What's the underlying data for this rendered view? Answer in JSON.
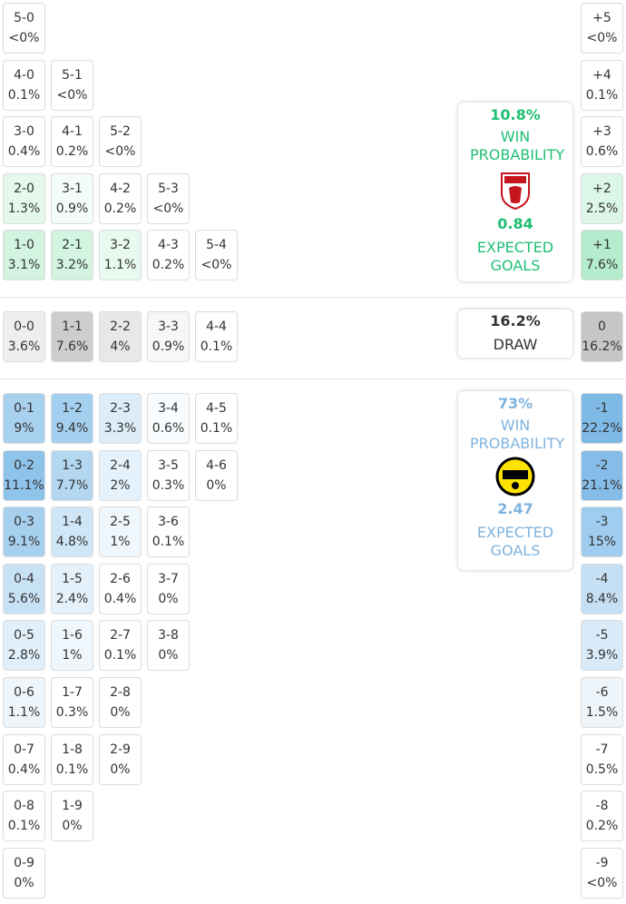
{
  "sections": [
    {
      "summary": {
        "probability": "10.8%",
        "label": "WIN PROBABILITY",
        "xg": "0.84",
        "xg_label": "EXPECTED GOALS",
        "color": "#1fbf74"
      },
      "rows": [
        [
          {
            "score": "5-0",
            "prob": "<0%",
            "color": "#ffffff"
          }
        ],
        [
          {
            "score": "4-0",
            "prob": "0.1%",
            "color": "#ffffff"
          },
          {
            "score": "5-1",
            "prob": "<0%",
            "color": "#ffffff"
          }
        ],
        [
          {
            "score": "3-0",
            "prob": "0.4%",
            "color": "#ffffff"
          },
          {
            "score": "4-1",
            "prob": "0.2%",
            "color": "#ffffff"
          },
          {
            "score": "5-2",
            "prob": "<0%",
            "color": "#ffffff"
          }
        ],
        [
          {
            "score": "2-0",
            "prob": "1.3%",
            "color": "#e4f8ec"
          },
          {
            "score": "3-1",
            "prob": "0.9%",
            "color": "#f4fcf7"
          },
          {
            "score": "4-2",
            "prob": "0.2%",
            "color": "#ffffff"
          },
          {
            "score": "5-3",
            "prob": "<0%",
            "color": "#ffffff"
          }
        ],
        [
          {
            "score": "1-0",
            "prob": "3.1%",
            "color": "#d2f4e1"
          },
          {
            "score": "2-1",
            "prob": "3.2%",
            "color": "#d2f4e1"
          },
          {
            "score": "3-2",
            "prob": "1.1%",
            "color": "#e8f9ef"
          },
          {
            "score": "4-3",
            "prob": "0.2%",
            "color": "#ffffff"
          },
          {
            "score": "5-4",
            "prob": "<0%",
            "color": "#ffffff"
          }
        ]
      ],
      "margins": [
        {
          "score": "+5",
          "prob": "<0%",
          "color": "#ffffff"
        },
        {
          "score": "+4",
          "prob": "0.1%",
          "color": "#ffffff"
        },
        {
          "score": "+3",
          "prob": "0.6%",
          "color": "#ffffff"
        },
        {
          "score": "+2",
          "prob": "2.5%",
          "color": "#dcf6e7"
        },
        {
          "score": "+1",
          "prob": "7.6%",
          "color": "#b6ecce"
        }
      ]
    },
    {
      "summary": {
        "probability": "16.2%",
        "label": "DRAW",
        "color": "#333333"
      },
      "rows": [
        [
          {
            "score": "0-0",
            "prob": "3.6%",
            "color": "#eeeeee"
          },
          {
            "score": "1-1",
            "prob": "7.6%",
            "color": "#cdcdcd"
          },
          {
            "score": "2-2",
            "prob": "4%",
            "color": "#e8e8e8"
          },
          {
            "score": "3-3",
            "prob": "0.9%",
            "color": "#f7f7f7"
          },
          {
            "score": "4-4",
            "prob": "0.1%",
            "color": "#ffffff"
          }
        ]
      ],
      "margins": [
        {
          "score": "0",
          "prob": "16.2%",
          "color": "#c6c6c6"
        }
      ]
    },
    {
      "summary": {
        "probability": "73%",
        "label": "WIN PROBABILITY",
        "xg": "2.47",
        "xg_label": "EXPECTED GOALS",
        "color": "#7fb3de"
      },
      "rows": [
        [
          {
            "score": "0-1",
            "prob": "9%",
            "color": "#a8d0ef"
          },
          {
            "score": "1-2",
            "prob": "9.4%",
            "color": "#a5cfef"
          },
          {
            "score": "2-3",
            "prob": "3.3%",
            "color": "#dcedf9"
          },
          {
            "score": "3-4",
            "prob": "0.6%",
            "color": "#f9fcfe"
          },
          {
            "score": "4-5",
            "prob": "0.1%",
            "color": "#ffffff"
          }
        ],
        [
          {
            "score": "0-2",
            "prob": "11.1%",
            "color": "#8ec3ea"
          },
          {
            "score": "1-3",
            "prob": "7.7%",
            "color": "#b3d7f1"
          },
          {
            "score": "2-4",
            "prob": "2%",
            "color": "#e6f2fb"
          },
          {
            "score": "3-5",
            "prob": "0.3%",
            "color": "#ffffff"
          },
          {
            "score": "4-6",
            "prob": "0%",
            "color": "#ffffff"
          }
        ],
        [
          {
            "score": "0-3",
            "prob": "9.1%",
            "color": "#a7d0ef"
          },
          {
            "score": "1-4",
            "prob": "4.8%",
            "color": "#cfe6f6"
          },
          {
            "score": "2-5",
            "prob": "1%",
            "color": "#f0f7fc"
          },
          {
            "score": "3-6",
            "prob": "0.1%",
            "color": "#ffffff"
          }
        ],
        [
          {
            "score": "0-4",
            "prob": "5.6%",
            "color": "#c8e2f5"
          },
          {
            "score": "1-5",
            "prob": "2.4%",
            "color": "#e4f1fa"
          },
          {
            "score": "2-6",
            "prob": "0.4%",
            "color": "#ffffff"
          },
          {
            "score": "3-7",
            "prob": "0%",
            "color": "#ffffff"
          }
        ],
        [
          {
            "score": "0-5",
            "prob": "2.8%",
            "color": "#e0eff9"
          },
          {
            "score": "1-6",
            "prob": "1%",
            "color": "#f0f7fc"
          },
          {
            "score": "2-7",
            "prob": "0.1%",
            "color": "#ffffff"
          },
          {
            "score": "3-8",
            "prob": "0%",
            "color": "#ffffff"
          }
        ],
        [
          {
            "score": "0-6",
            "prob": "1.1%",
            "color": "#eef6fc"
          },
          {
            "score": "1-7",
            "prob": "0.3%",
            "color": "#ffffff"
          },
          {
            "score": "2-8",
            "prob": "0%",
            "color": "#ffffff"
          }
        ],
        [
          {
            "score": "0-7",
            "prob": "0.4%",
            "color": "#ffffff"
          },
          {
            "score": "1-8",
            "prob": "0.1%",
            "color": "#ffffff"
          },
          {
            "score": "2-9",
            "prob": "0%",
            "color": "#ffffff"
          }
        ],
        [
          {
            "score": "0-8",
            "prob": "0.1%",
            "color": "#ffffff"
          },
          {
            "score": "1-9",
            "prob": "0%",
            "color": "#ffffff"
          }
        ],
        [
          {
            "score": "0-9",
            "prob": "0%",
            "color": "#ffffff"
          }
        ]
      ],
      "margins": [
        {
          "score": "-1",
          "prob": "22.2%",
          "color": "#7fb9e6"
        },
        {
          "score": "-2",
          "prob": "21.1%",
          "color": "#86bde8"
        },
        {
          "score": "-3",
          "prob": "15%",
          "color": "#a0cdef"
        },
        {
          "score": "-4",
          "prob": "8.4%",
          "color": "#c5e0f4"
        },
        {
          "score": "-5",
          "prob": "3.9%",
          "color": "#d9ebf8"
        },
        {
          "score": "-6",
          "prob": "1.5%",
          "color": "#eef6fc"
        },
        {
          "score": "-7",
          "prob": "0.5%",
          "color": "#ffffff"
        },
        {
          "score": "-8",
          "prob": "0.2%",
          "color": "#ffffff"
        },
        {
          "score": "-9",
          "prob": "<0%",
          "color": "#ffffff"
        }
      ]
    }
  ]
}
